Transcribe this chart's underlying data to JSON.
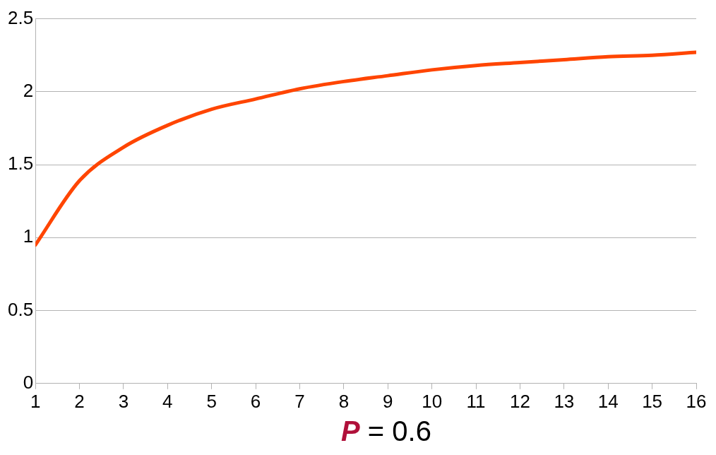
{
  "chart_data": {
    "type": "line",
    "xlabel": "P = 0.6",
    "x": [
      1,
      2,
      3,
      4,
      5,
      6,
      7,
      8,
      9,
      10,
      11,
      12,
      13,
      14,
      15,
      16
    ],
    "series": [
      {
        "color": "#ff4500",
        "values": [
          0.95,
          1.39,
          1.62,
          1.77,
          1.88,
          1.95,
          2.02,
          2.07,
          2.11,
          2.15,
          2.18,
          2.2,
          2.22,
          2.24,
          2.25,
          2.27
        ]
      }
    ],
    "xlim": [
      1,
      16
    ],
    "xticks": [
      1,
      2,
      3,
      4,
      5,
      6,
      7,
      8,
      9,
      10,
      11,
      12,
      13,
      14,
      15,
      16
    ],
    "ylim": [
      0,
      2.5
    ],
    "yticks": [
      0,
      0.5,
      1,
      1.5,
      2,
      2.5
    ],
    "grid": "y",
    "marker": "none",
    "line_style": "solid",
    "legend": false
  }
}
